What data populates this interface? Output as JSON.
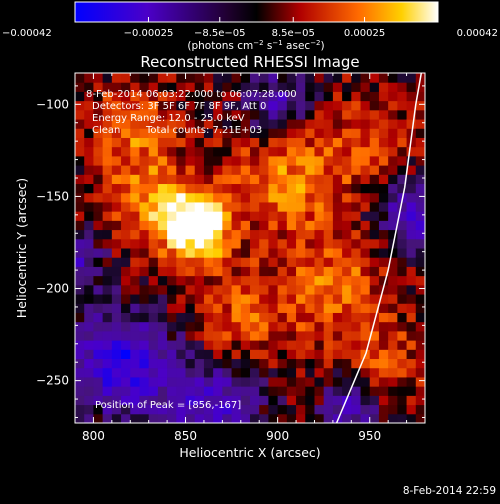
{
  "chart_data": {
    "type": "heatmap",
    "title": "Reconstructed RHESSI Image",
    "xlabel": "Heliocentric X (arcsec)",
    "ylabel": "Heliocentric Y (arcsec)",
    "xlim": [
      790,
      980
    ],
    "ylim": [
      -273,
      -83
    ],
    "x_ticks": [
      800,
      850,
      900,
      950
    ],
    "x_tick_labels": [
      "800",
      "850",
      "900",
      "950"
    ],
    "y_ticks": [
      -100,
      -150,
      -200,
      -250
    ],
    "y_tick_labels": [
      "−100",
      "−150",
      "−200",
      "−250"
    ],
    "colorbar": {
      "range": [
        -0.00042,
        0.00042
      ],
      "ticks": [
        -0.00042,
        -0.00025,
        -8.5e-05,
        8.5e-05,
        0.00025,
        0.00042
      ],
      "tick_labels": [
        "−0.00042",
        "−0.00025",
        "−8.5e−05",
        "8.5e−05",
        "0.00025",
        "0.00042"
      ],
      "colormap": [
        "#0000ff",
        "#5a00b0",
        "#000000",
        "#b00000",
        "#ff6a00",
        "#ffd000",
        "#ffffff"
      ]
    },
    "peak": {
      "x": 856,
      "y": -167
    },
    "annotations": {
      "time_range": "8-Feb-2014 06:03:22.000 to 06:07:28.000",
      "detectors": "Detectors: 3F 5F 6F 7F 8F 9F, Att 0",
      "energy": "Energy Range: 12.0 - 25.0 keV",
      "algorithm": "Clean",
      "total_counts": "Total counts: 7.21E+03",
      "peak_label": "Position of Peak = [856,-167]"
    },
    "limb_curve": {
      "description_points_data_units": [
        [
          932,
          -273
        ],
        [
          948,
          -235
        ],
        [
          960,
          -190
        ],
        [
          969,
          -145
        ],
        [
          975,
          -100
        ],
        [
          978,
          -83
        ]
      ]
    },
    "grid": false
  },
  "labels": {
    "colorbar_unit_prefix": "(photons cm",
    "colorbar_unit_mid": " s",
    "colorbar_unit_mid2": " asec",
    "colorbar_unit_suffix": ")",
    "sup_m2": "−2",
    "sup_m1": "−1",
    "footer_timestamp": "8-Feb-2014 22:59"
  },
  "colors": {
    "background": "#000000",
    "text": "#ffffff",
    "limb": "#ffffff"
  }
}
